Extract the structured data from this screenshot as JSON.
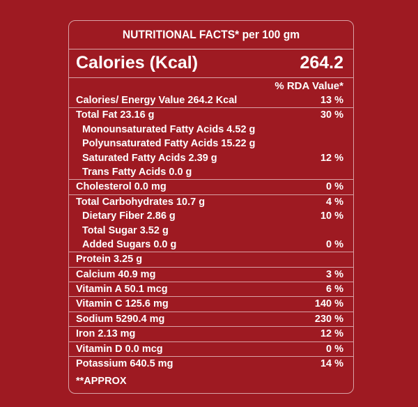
{
  "title": "NUTRITIONAL FACTS* per 100 gm",
  "calories_label": "Calories (Kcal)",
  "calories_value": "264.2",
  "rda_header": "% RDA Value*",
  "nutrients": [
    {
      "name": "Calories/ Energy Value 264.2 Kcal",
      "pct": "13 %",
      "indent": false,
      "rule": false
    },
    {
      "name": "Total Fat 23.16 g",
      "pct": "30 %",
      "indent": false,
      "rule": true
    },
    {
      "name": "Monounsaturated Fatty Acids 4.52 g",
      "pct": "",
      "indent": true,
      "rule": false
    },
    {
      "name": "Polyunsaturated Fatty Acids 15.22 g",
      "pct": "",
      "indent": true,
      "rule": false
    },
    {
      "name": "Saturated Fatty Acids 2.39 g",
      "pct": "12 %",
      "indent": true,
      "rule": false
    },
    {
      "name": "Trans Fatty Acids 0.0 g",
      "pct": "",
      "indent": true,
      "rule": false
    },
    {
      "name": "Cholesterol 0.0 mg",
      "pct": "0 %",
      "indent": false,
      "rule": true
    },
    {
      "name": "Total Carbohydrates 10.7 g",
      "pct": "4 %",
      "indent": false,
      "rule": true
    },
    {
      "name": "Dietary Fiber 2.86 g",
      "pct": "10 %",
      "indent": true,
      "rule": false
    },
    {
      "name": "Total Sugar 3.52 g",
      "pct": "",
      "indent": true,
      "rule": false
    },
    {
      "name": "Added Sugars 0.0 g",
      "pct": "0 %",
      "indent": true,
      "rule": false
    },
    {
      "name": "Protein 3.25 g",
      "pct": "",
      "indent": false,
      "rule": true
    },
    {
      "name": "Calcium 40.9 mg",
      "pct": "3 %",
      "indent": false,
      "rule": true
    },
    {
      "name": "Vitamin A 50.1 mcg",
      "pct": "6 %",
      "indent": false,
      "rule": true
    },
    {
      "name": "Vitamin C 125.6 mg",
      "pct": "140 %",
      "indent": false,
      "rule": true
    },
    {
      "name": "Sodium 5290.4 mg",
      "pct": "230 %",
      "indent": false,
      "rule": true
    },
    {
      "name": "Iron 2.13 mg",
      "pct": "12 %",
      "indent": false,
      "rule": true
    },
    {
      "name": "Vitamin D 0.0 mcg",
      "pct": "0 %",
      "indent": false,
      "rule": true
    },
    {
      "name": "Potassium 640.5 mg",
      "pct": "14 %",
      "indent": false,
      "rule": true
    }
  ],
  "footnote": "**APPROX",
  "colors": {
    "background": "#9e1a22",
    "text": "#ffffff",
    "rule": "#d9a3a6"
  }
}
